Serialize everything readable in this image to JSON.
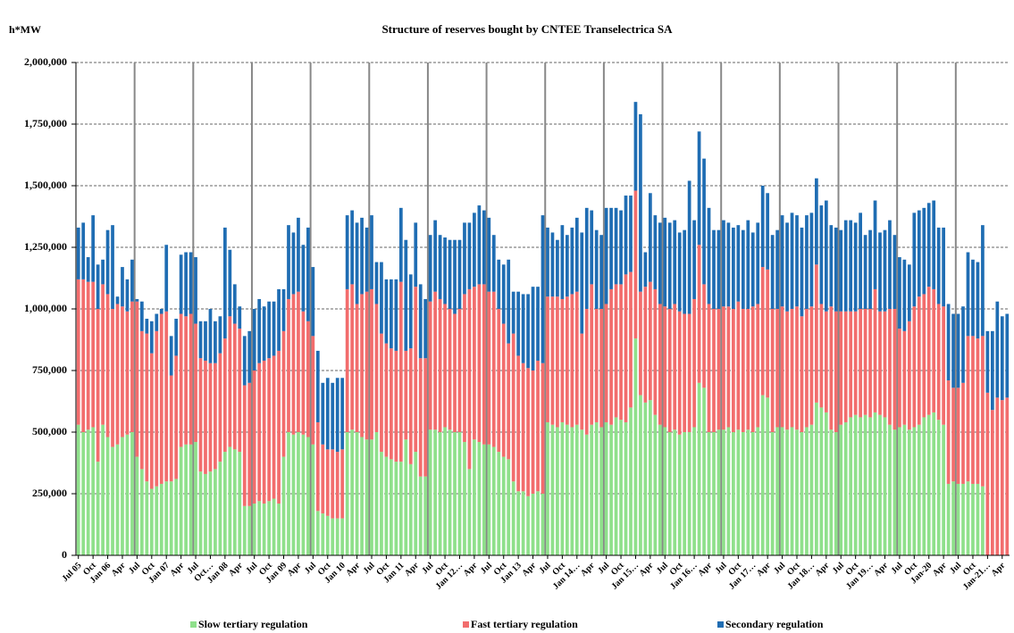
{
  "chart_data": {
    "type": "stacked-bar",
    "title": "Structure  of reserves bought by CNTEE Transelectrica SA",
    "y_label": "h*MW",
    "grid": true,
    "ylim": [
      0,
      2000000
    ],
    "yticks": [
      0,
      {
        "value": 250000,
        "label": "250,000"
      },
      {
        "value": 500000,
        "label": "500,000"
      },
      {
        "value": 750000,
        "label": "750,000"
      },
      {
        "value": 1000000,
        "label": "1,000,000"
      },
      {
        "value": 1250000,
        "label": "1,250,000"
      },
      {
        "value": 1500000,
        "label": "1,500,000"
      },
      {
        "value": 1750000,
        "label": "1,750,000"
      },
      {
        "value": 2000000,
        "label": "2,000,000"
      }
    ],
    "categories": [
      "Jul 05",
      null,
      null,
      "Oct",
      null,
      null,
      "Jan 06",
      null,
      null,
      "Apr",
      null,
      null,
      "Jul",
      null,
      null,
      "Oct",
      null,
      null,
      "Jan 07",
      null,
      null,
      "Apr",
      null,
      null,
      "Jul",
      null,
      null,
      "Oct…",
      null,
      null,
      "Jan 08",
      null,
      null,
      "Apr",
      null,
      null,
      "Jul",
      null,
      null,
      "Oct",
      null,
      null,
      "Jan 09",
      null,
      null,
      "Apr",
      null,
      null,
      "Jul",
      null,
      null,
      "Oct",
      null,
      null,
      "Jan 10",
      null,
      null,
      "Apr",
      null,
      null,
      "Jul",
      null,
      null,
      "Oct",
      null,
      null,
      "Jan 11",
      null,
      null,
      "Apr",
      null,
      null,
      "Jul",
      null,
      null,
      "Oct",
      null,
      null,
      "Jan 12…",
      null,
      null,
      "Apr",
      null,
      null,
      "Jul",
      null,
      null,
      "Oct",
      null,
      null,
      "Jan 13",
      null,
      null,
      "Apr",
      null,
      null,
      "Jul",
      null,
      null,
      "Oct",
      null,
      null,
      "Jan 14…",
      null,
      null,
      "Apr",
      null,
      null,
      "Jul",
      null,
      null,
      "Oct",
      null,
      null,
      "Jan 15…",
      null,
      null,
      "Apr",
      null,
      null,
      "Jul",
      null,
      null,
      "Oct",
      null,
      null,
      "Jan 16…",
      null,
      null,
      "Apr",
      null,
      null,
      "Jul",
      null,
      null,
      "Oct",
      null,
      null,
      "Jan 17…",
      null,
      null,
      "Apr",
      null,
      null,
      "Jul",
      null,
      null,
      "Oct",
      null,
      null,
      "Jan 18…",
      null,
      null,
      "Apr",
      null,
      null,
      "Jul",
      null,
      null,
      "Oct",
      null,
      null,
      "Jan 19…",
      null,
      null,
      "Apr",
      null,
      null,
      "Jul",
      null,
      null,
      "Oct",
      null,
      null,
      "Jan-20",
      null,
      null,
      "Apr",
      null,
      null,
      "Jul",
      null,
      null,
      "Oct",
      null,
      null,
      "Jan-21…",
      null,
      null,
      "Apr",
      null
    ],
    "series": [
      {
        "name": "Slow tertiary regulation",
        "color": "#8fe08b",
        "values": [
          530000,
          500000,
          510000,
          520000,
          380000,
          530000,
          480000,
          440000,
          450000,
          480000,
          490000,
          500000,
          400000,
          350000,
          300000,
          270000,
          280000,
          290000,
          300000,
          300000,
          310000,
          440000,
          450000,
          450000,
          460000,
          340000,
          330000,
          340000,
          350000,
          380000,
          420000,
          440000,
          430000,
          420000,
          200000,
          200000,
          210000,
          220000,
          210000,
          220000,
          230000,
          210000,
          400000,
          500000,
          490000,
          500000,
          490000,
          480000,
          450000,
          180000,
          170000,
          160000,
          150000,
          150000,
          150000,
          500000,
          510000,
          500000,
          480000,
          470000,
          470000,
          500000,
          420000,
          400000,
          390000,
          380000,
          380000,
          470000,
          370000,
          420000,
          320000,
          320000,
          510000,
          510000,
          500000,
          520000,
          510000,
          500000,
          500000,
          460000,
          350000,
          470000,
          460000,
          450000,
          450000,
          440000,
          420000,
          400000,
          390000,
          300000,
          260000,
          260000,
          240000,
          250000,
          260000,
          250000,
          540000,
          530000,
          520000,
          540000,
          530000,
          520000,
          530000,
          510000,
          490000,
          530000,
          540000,
          520000,
          540000,
          530000,
          560000,
          550000,
          540000,
          600000,
          880000,
          650000,
          620000,
          630000,
          570000,
          530000,
          520000,
          500000,
          510000,
          490000,
          500000,
          500000,
          520000,
          700000,
          680000,
          500000,
          500000,
          510000,
          510000,
          520000,
          500000,
          510000,
          500000,
          510000,
          500000,
          520000,
          650000,
          640000,
          500000,
          520000,
          520000,
          510000,
          520000,
          510000,
          500000,
          520000,
          530000,
          620000,
          600000,
          580000,
          510000,
          500000,
          530000,
          540000,
          560000,
          570000,
          560000,
          570000,
          560000,
          580000,
          570000,
          560000,
          530000,
          510000,
          520000,
          530000,
          510000,
          520000,
          530000,
          560000,
          570000,
          580000,
          550000,
          530000,
          290000,
          300000,
          290000,
          290000,
          300000,
          290000,
          290000,
          280000,
          0,
          0,
          0,
          0,
          0
        ]
      },
      {
        "name": "Fast tertiary regulation",
        "color": "#f26d6d",
        "values": [
          590000,
          620000,
          600000,
          590000,
          620000,
          570000,
          580000,
          560000,
          570000,
          530000,
          500000,
          530000,
          630000,
          560000,
          600000,
          550000,
          630000,
          690000,
          690000,
          430000,
          500000,
          540000,
          520000,
          530000,
          480000,
          460000,
          460000,
          440000,
          430000,
          440000,
          460000,
          530000,
          510000,
          500000,
          490000,
          500000,
          540000,
          560000,
          580000,
          580000,
          580000,
          620000,
          510000,
          540000,
          570000,
          570000,
          500000,
          470000,
          440000,
          360000,
          280000,
          270000,
          280000,
          270000,
          280000,
          580000,
          590000,
          520000,
          580000,
          600000,
          610000,
          520000,
          480000,
          460000,
          450000,
          450000,
          730000,
          360000,
          470000,
          670000,
          480000,
          480000,
          520000,
          560000,
          540000,
          500000,
          490000,
          480000,
          500000,
          600000,
          730000,
          620000,
          640000,
          650000,
          620000,
          630000,
          580000,
          540000,
          470000,
          600000,
          550000,
          520000,
          520000,
          500000,
          530000,
          530000,
          510000,
          520000,
          530000,
          500000,
          520000,
          540000,
          540000,
          390000,
          510000,
          570000,
          460000,
          480000,
          480000,
          550000,
          540000,
          550000,
          600000,
          550000,
          600000,
          420000,
          470000,
          480000,
          510000,
          490000,
          490000,
          500000,
          510000,
          500000,
          480000,
          480000,
          520000,
          560000,
          420000,
          520000,
          500000,
          490000,
          500000,
          490000,
          500000,
          520000,
          500000,
          490000,
          510000,
          500000,
          520000,
          520000,
          500000,
          480000,
          490000,
          480000,
          480000,
          500000,
          470000,
          480000,
          480000,
          560000,
          420000,
          410000,
          500000,
          490000,
          460000,
          450000,
          430000,
          420000,
          440000,
          430000,
          440000,
          500000,
          420000,
          430000,
          470000,
          490000,
          400000,
          380000,
          440000,
          490000,
          520000,
          500000,
          520000,
          500000,
          470000,
          480000,
          420000,
          380000,
          390000,
          410000,
          590000,
          600000,
          590000,
          610000,
          660000,
          590000,
          640000,
          630000,
          640000
        ]
      },
      {
        "name": "Secondary regulation",
        "color": "#1f6db3",
        "values": [
          210000,
          230000,
          100000,
          270000,
          180000,
          100000,
          260000,
          340000,
          30000,
          160000,
          130000,
          170000,
          10000,
          120000,
          60000,
          130000,
          70000,
          20000,
          270000,
          160000,
          150000,
          240000,
          260000,
          250000,
          270000,
          150000,
          160000,
          220000,
          170000,
          150000,
          450000,
          270000,
          160000,
          90000,
          200000,
          210000,
          250000,
          260000,
          220000,
          230000,
          220000,
          250000,
          170000,
          300000,
          250000,
          300000,
          270000,
          380000,
          280000,
          290000,
          250000,
          290000,
          270000,
          300000,
          290000,
          300000,
          300000,
          330000,
          310000,
          260000,
          300000,
          170000,
          290000,
          260000,
          280000,
          290000,
          300000,
          450000,
          300000,
          260000,
          300000,
          240000,
          270000,
          290000,
          260000,
          270000,
          280000,
          300000,
          280000,
          290000,
          270000,
          300000,
          320000,
          300000,
          300000,
          230000,
          200000,
          240000,
          340000,
          170000,
          260000,
          280000,
          300000,
          340000,
          300000,
          600000,
          280000,
          260000,
          230000,
          300000,
          250000,
          270000,
          300000,
          410000,
          410000,
          300000,
          320000,
          300000,
          390000,
          330000,
          310000,
          300000,
          320000,
          310000,
          360000,
          720000,
          140000,
          360000,
          300000,
          330000,
          360000,
          350000,
          340000,
          320000,
          340000,
          540000,
          320000,
          460000,
          510000,
          390000,
          320000,
          320000,
          350000,
          340000,
          330000,
          310000,
          320000,
          360000,
          300000,
          330000,
          330000,
          310000,
          300000,
          320000,
          370000,
          360000,
          390000,
          370000,
          360000,
          380000,
          380000,
          350000,
          400000,
          450000,
          330000,
          340000,
          330000,
          370000,
          370000,
          360000,
          390000,
          300000,
          320000,
          360000,
          320000,
          330000,
          360000,
          300000,
          290000,
          290000,
          230000,
          380000,
          350000,
          350000,
          340000,
          360000,
          310000,
          320000,
          310000,
          300000,
          300000,
          310000,
          340000,
          310000,
          310000,
          450000,
          250000,
          320000,
          390000,
          340000,
          340000
        ]
      }
    ]
  }
}
